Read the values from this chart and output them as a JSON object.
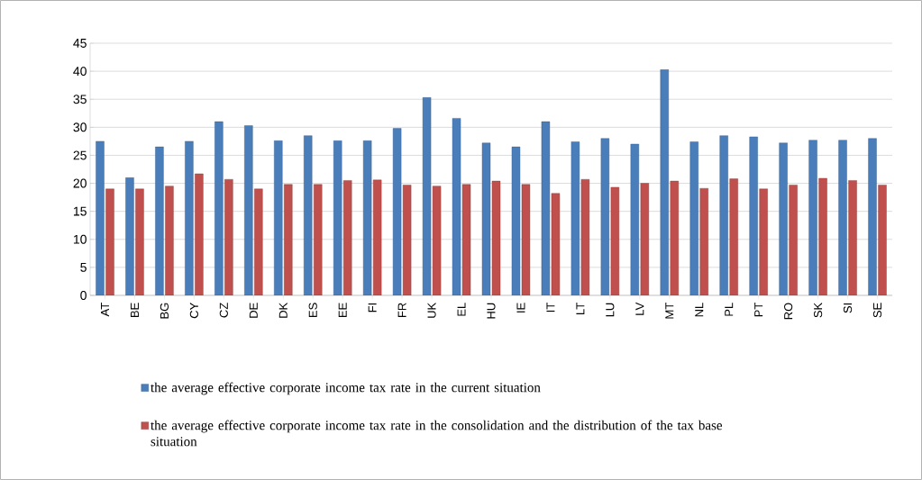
{
  "chart_data": {
    "type": "bar",
    "categories": [
      "AT",
      "BE",
      "BG",
      "CY",
      "CZ",
      "DE",
      "DK",
      "ES",
      "EE",
      "FI",
      "FR",
      "UK",
      "EL",
      "HU",
      "IE",
      "IT",
      "LT",
      "LU",
      "LV",
      "MT",
      "NL",
      "PL",
      "PT",
      "RO",
      "SK",
      "SI",
      "SE"
    ],
    "series": [
      {
        "name": "the average effective corporate income tax rate in the current situation",
        "color": "#4a7ebb",
        "values": [
          27.5,
          21,
          26.5,
          27.5,
          31,
          30.3,
          27.6,
          28.5,
          27.6,
          27.6,
          29.8,
          35.3,
          31.6,
          27.2,
          26.5,
          31,
          27.4,
          28,
          27,
          40.3,
          27.4,
          28.5,
          28.3,
          27.2,
          27.7,
          27.7,
          28
        ]
      },
      {
        "name": "the average effective corporate income tax rate in the consolidation and the distribution of the tax base situation",
        "color": "#c0504d",
        "values": [
          19,
          19,
          19.5,
          21.7,
          20.7,
          19,
          19.8,
          19.8,
          20.5,
          20.6,
          19.7,
          19.5,
          19.8,
          20.4,
          19.8,
          18.2,
          20.7,
          19.3,
          20,
          20.4,
          19.1,
          20.8,
          19,
          19.7,
          20.9,
          20.5,
          19.7
        ]
      }
    ],
    "ylim": [
      0,
      45
    ],
    "yticks": [
      0,
      5,
      10,
      15,
      20,
      25,
      30,
      35,
      40,
      45
    ],
    "grid": "y",
    "legend": "bottom"
  }
}
